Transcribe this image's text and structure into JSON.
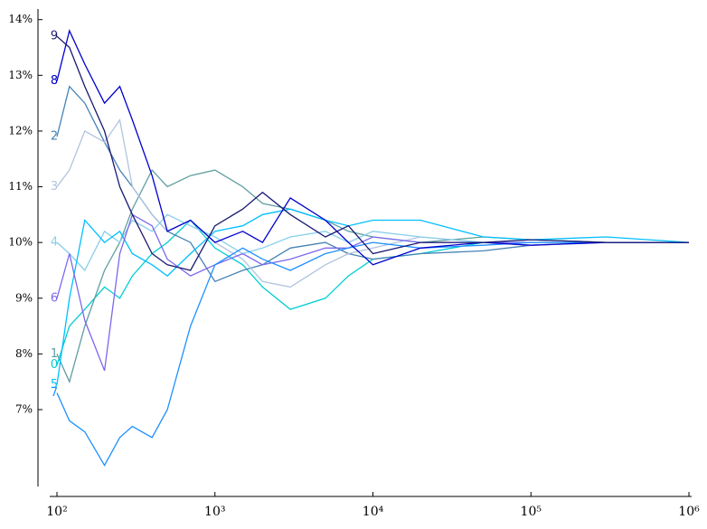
{
  "chart_data": {
    "type": "line",
    "log_x": true,
    "xlim": [
      90,
      1040000
    ],
    "ylim": [
      5.62,
      14.19
    ],
    "xticks": [
      {
        "value": 100,
        "label": "10²"
      },
      {
        "value": 1000,
        "label": "10³"
      },
      {
        "value": 10000,
        "label": "10⁴"
      },
      {
        "value": 100000,
        "label": "10⁵"
      },
      {
        "value": 1000000,
        "label": "10⁶"
      }
    ],
    "yticks": [
      {
        "value": 7,
        "label": "7%"
      },
      {
        "value": 8,
        "label": "8%"
      },
      {
        "value": 9,
        "label": "9%"
      },
      {
        "value": 10,
        "label": "10%"
      },
      {
        "value": 11,
        "label": "11%"
      },
      {
        "value": 12,
        "label": "12%"
      },
      {
        "value": 13,
        "label": "13%"
      },
      {
        "value": 14,
        "label": "14%"
      }
    ],
    "x": [
      100,
      120,
      150,
      200,
      250,
      300,
      400,
      500,
      700,
      1000,
      1500,
      2000,
      3000,
      5000,
      7000,
      10000,
      20000,
      50000,
      100000,
      300000,
      1000000
    ],
    "series": [
      {
        "name": "0",
        "color": "#00ced1",
        "values": [
          7.8,
          8.5,
          8.8,
          9.2,
          9.0,
          9.4,
          9.8,
          10.0,
          10.4,
          9.9,
          9.6,
          9.2,
          8.8,
          9.0,
          9.4,
          9.7,
          9.8,
          10.0,
          10.0,
          10.0,
          10.0
        ]
      },
      {
        "name": "1",
        "color": "#5f9ea0",
        "values": [
          8.0,
          7.5,
          8.5,
          9.5,
          10.0,
          10.6,
          11.3,
          11.0,
          11.2,
          11.3,
          11.0,
          10.7,
          10.6,
          10.4,
          10.2,
          10.1,
          10.0,
          10.1,
          10.05,
          10.0,
          10.0
        ]
      },
      {
        "name": "2",
        "color": "#4682b4",
        "values": [
          11.9,
          12.8,
          12.5,
          11.8,
          11.3,
          11.0,
          10.5,
          10.2,
          10.0,
          9.3,
          9.5,
          9.6,
          9.9,
          10.0,
          9.8,
          9.7,
          9.8,
          9.85,
          9.95,
          10.0,
          10.0
        ]
      },
      {
        "name": "3",
        "color": "#b0c4de",
        "values": [
          11.0,
          11.3,
          12.0,
          11.8,
          12.2,
          11.0,
          10.5,
          10.2,
          10.4,
          10.0,
          9.7,
          9.3,
          9.2,
          9.6,
          9.8,
          9.9,
          10.1,
          10.0,
          9.95,
          10.0,
          10.0
        ]
      },
      {
        "name": "4",
        "color": "#87ceeb",
        "values": [
          10.0,
          9.8,
          9.5,
          10.2,
          10.0,
          10.4,
          10.2,
          10.5,
          10.3,
          10.1,
          9.8,
          9.9,
          10.1,
          10.2,
          10.0,
          10.2,
          10.1,
          10.0,
          10.05,
          10.0,
          10.0
        ]
      },
      {
        "name": "5",
        "color": "#00bfff",
        "values": [
          7.45,
          9.0,
          10.4,
          10.0,
          10.2,
          9.8,
          9.6,
          9.4,
          9.8,
          10.2,
          10.3,
          10.5,
          10.6,
          10.4,
          10.3,
          10.4,
          10.4,
          10.1,
          10.05,
          10.1,
          10.0
        ]
      },
      {
        "name": "6",
        "color": "#7b68ee",
        "values": [
          9.0,
          9.8,
          8.6,
          7.7,
          9.8,
          10.5,
          10.3,
          9.7,
          9.4,
          9.6,
          9.8,
          9.6,
          9.7,
          9.9,
          9.9,
          10.1,
          10.0,
          10.0,
          10.0,
          10.0,
          10.0
        ]
      },
      {
        "name": "7",
        "color": "#1e90ff",
        "values": [
          7.3,
          6.8,
          6.6,
          6.0,
          6.5,
          6.7,
          6.5,
          7.0,
          8.5,
          9.6,
          9.9,
          9.7,
          9.5,
          9.8,
          9.9,
          10.0,
          9.9,
          9.95,
          10.0,
          10.0,
          10.0
        ]
      },
      {
        "name": "8",
        "color": "#0000cd",
        "values": [
          12.9,
          13.8,
          13.2,
          12.5,
          12.8,
          12.2,
          11.2,
          10.2,
          10.4,
          10.0,
          10.2,
          10.0,
          10.8,
          10.4,
          10.0,
          9.6,
          9.9,
          10.0,
          9.95,
          10.0,
          10.0
        ]
      },
      {
        "name": "9",
        "color": "#191970",
        "values": [
          13.7,
          13.5,
          12.8,
          12.0,
          11.0,
          10.5,
          9.8,
          9.6,
          9.5,
          10.3,
          10.6,
          10.9,
          10.5,
          10.1,
          10.3,
          9.8,
          10.0,
          10.0,
          10.05,
          10.0,
          10.0
        ]
      }
    ]
  }
}
